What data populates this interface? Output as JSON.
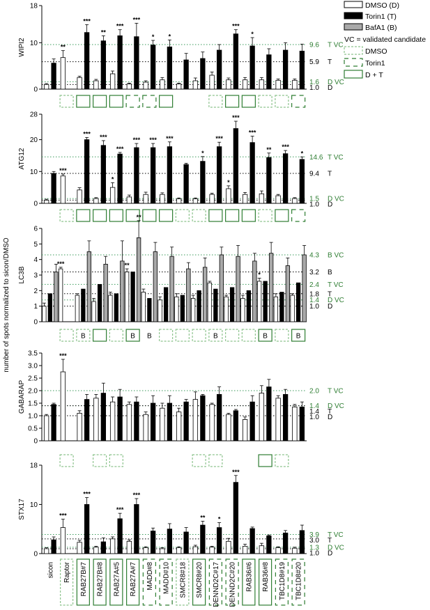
{
  "yaxis_common_label": "number of spots normalized to sicon/DMSO",
  "legend": {
    "dmso": "DMSO (D)",
    "torin": "Torin1 (T)",
    "baf": "BafA1 (B)",
    "vc_note": "VC = validated candidate",
    "box_dmso": "DMSO",
    "box_torin": "Torin1",
    "box_dt": "D + T"
  },
  "colors": {
    "green": "#2e7d32",
    "dotted_green": "#3a9a5a",
    "box_light": "#8ec48e",
    "dmso": "#ffffff",
    "torin": "#000000",
    "baf": "#a9a9a9"
  },
  "categories": [
    "sicon",
    "Raptor",
    "RAB27B#7",
    "RAB27B#8",
    "RAB27A#5",
    "RAB27A#7",
    "MADD#8",
    "MADD#10",
    "SMCR8#18",
    "SMCR8#20",
    "DENND2C#17",
    "DENND2C#20",
    "RAB36#6",
    "RAB36#8",
    "TBC1D8#19",
    "TBC1D8#20"
  ],
  "xlabel_boxes": [
    "none",
    "dmso",
    "dt",
    "dt",
    "dt",
    "dt",
    "torin",
    "torin",
    "dmso",
    "dt",
    "torin",
    "torin",
    "dt",
    "dt",
    "torin",
    "torin"
  ],
  "chart_data": [
    {
      "type": "bar",
      "ylabel": "WIPI2",
      "ylim": [
        0,
        18
      ],
      "yticks": [
        0,
        10,
        18
      ],
      "series": [
        {
          "name": "DMSO (D)",
          "key": "D",
          "values": [
            1.0,
            6.8,
            2.5,
            1.8,
            3.3,
            1.1,
            1.5,
            2.0,
            1.1,
            1.8,
            3.0,
            2.0,
            2.0,
            2.0,
            1.9,
            1.9
          ],
          "errors": [
            0.2,
            1.5,
            0.3,
            0.3,
            0.6,
            0.2,
            0.3,
            0.5,
            0.2,
            0.6,
            0.7,
            0.4,
            0.5,
            0.5,
            0.3,
            0.3
          ]
        },
        {
          "name": "Torin1 (T)",
          "key": "T",
          "values": [
            5.6,
            null,
            12.2,
            10.4,
            11.5,
            11.3,
            9.5,
            9.1,
            6.3,
            6.6,
            8.4,
            11.9,
            9.3,
            7.4,
            8.4,
            8.2
          ],
          "errors": [
            0.9,
            null,
            1.7,
            1.1,
            1.3,
            2.9,
            1.0,
            1.5,
            1.4,
            1.4,
            1.2,
            0.9,
            1.8,
            1.3,
            1.6,
            1.5
          ]
        }
      ],
      "stars": [
        {
          "i": 1,
          "s": "D",
          "t": "**"
        },
        {
          "i": 2,
          "s": "T",
          "t": "***"
        },
        {
          "i": 3,
          "s": "T",
          "t": "**"
        },
        {
          "i": 4,
          "s": "T",
          "t": "***"
        },
        {
          "i": 5,
          "s": "T",
          "t": "***"
        },
        {
          "i": 6,
          "s": "T",
          "t": "*"
        },
        {
          "i": 7,
          "s": "T",
          "t": "*"
        },
        {
          "i": 11,
          "s": "T",
          "t": "***"
        },
        {
          "i": 12,
          "s": "T",
          "t": "*"
        }
      ],
      "reflines": [
        {
          "value": 9.6,
          "label": "9.6",
          "suffix": "T VC",
          "color": "green"
        },
        {
          "value": 5.9,
          "label": "5.9",
          "suffix": "T",
          "color": "black"
        },
        {
          "value": 1.6,
          "label": "1.6",
          "suffix": "D VC",
          "color": "green"
        },
        {
          "value": 1.0,
          "label": "1.0",
          "suffix": "D",
          "color": "black"
        }
      ],
      "boxes": [
        "",
        "dmso",
        "dt",
        "dt",
        "dt",
        "torin",
        "torin",
        "dt",
        "",
        "",
        "dmso",
        "dt",
        "dt",
        "dmso",
        "dmso",
        "torin"
      ],
      "box_text": [
        "",
        "",
        "",
        "",
        "",
        "",
        "",
        "",
        "",
        "",
        "",
        "",
        "",
        "",
        "",
        ""
      ]
    },
    {
      "type": "bar",
      "ylabel": "ATG12",
      "ylim": [
        0,
        28
      ],
      "yticks": [
        0,
        10,
        20,
        28
      ],
      "series": [
        {
          "name": "DMSO (D)",
          "key": "D",
          "values": [
            1.0,
            8.6,
            4.2,
            1.5,
            5.0,
            2.0,
            2.8,
            2.8,
            1.4,
            1.4,
            2.8,
            4.6,
            2.8,
            3.0,
            2.4,
            1.5
          ],
          "errors": [
            0.3,
            0.6,
            0.7,
            0.3,
            1.5,
            0.6,
            0.7,
            0.5,
            0.3,
            0.3,
            0.4,
            0.9,
            0.6,
            0.9,
            0.4,
            0.3
          ]
        },
        {
          "name": "Torin1 (T)",
          "key": "T",
          "values": [
            9.4,
            null,
            20.0,
            18.2,
            15.5,
            17.5,
            17.5,
            17.8,
            12.2,
            13.2,
            17.8,
            23.5,
            19.1,
            14.4,
            15.6,
            13.8
          ],
          "errors": [
            0.6,
            null,
            0.7,
            1.5,
            0.5,
            1.3,
            1.3,
            1.5,
            0.4,
            1.5,
            1.4,
            2.3,
            2.0,
            1.4,
            1.0,
            0.8
          ]
        }
      ],
      "stars": [
        {
          "i": 1,
          "s": "D",
          "t": "***"
        },
        {
          "i": 2,
          "s": "T",
          "t": "***"
        },
        {
          "i": 3,
          "s": "T",
          "t": "***"
        },
        {
          "i": 4,
          "s": "T",
          "t": "***"
        },
        {
          "i": 4,
          "s": "D",
          "t": "*"
        },
        {
          "i": 5,
          "s": "T",
          "t": "***"
        },
        {
          "i": 6,
          "s": "T",
          "t": "***"
        },
        {
          "i": 7,
          "s": "T",
          "t": "***"
        },
        {
          "i": 9,
          "s": "T",
          "t": "*"
        },
        {
          "i": 10,
          "s": "T",
          "t": "***"
        },
        {
          "i": 11,
          "s": "T",
          "t": "***"
        },
        {
          "i": 11,
          "s": "D",
          "t": "*"
        },
        {
          "i": 12,
          "s": "T",
          "t": "***"
        },
        {
          "i": 13,
          "s": "T",
          "t": "**"
        },
        {
          "i": 14,
          "s": "T",
          "t": "***"
        },
        {
          "i": 15,
          "s": "T",
          "t": "*"
        }
      ],
      "reflines": [
        {
          "value": 14.6,
          "label": "14.6",
          "suffix": "T VC",
          "color": "green"
        },
        {
          "value": 9.4,
          "label": "9.4",
          "suffix": "T",
          "color": "black"
        },
        {
          "value": 1.5,
          "label": "1.5",
          "suffix": "D VC",
          "color": "green"
        },
        {
          "value": 1.0,
          "label": "1.0",
          "suffix": "D",
          "color": "black"
        }
      ],
      "boxes": [
        "",
        "dmso",
        "dt",
        "dt",
        "dt",
        "dt",
        "dt",
        "dt",
        "dmso",
        "dmso",
        "dt",
        "dt",
        "dt",
        "dmso",
        "dt",
        "torin"
      ],
      "box_text": [
        "",
        "",
        "",
        "",
        "",
        "",
        "",
        "",
        "",
        "",
        "",
        "",
        "",
        "",
        "",
        ""
      ]
    },
    {
      "type": "bar",
      "ylabel": "LC3B",
      "ylim": [
        0,
        6
      ],
      "yticks": [
        0,
        1,
        2,
        3,
        4,
        5,
        6
      ],
      "series": [
        {
          "name": "DMSO (D)",
          "key": "D",
          "values": [
            1.0,
            3.4,
            1.7,
            1.3,
            1.7,
            3.2,
            1.9,
            1.4,
            1.6,
            1.5,
            2.5,
            1.6,
            1.5,
            2.6,
            1.6,
            1.7
          ],
          "errors": [
            0.2,
            0.1,
            0.1,
            0.2,
            0.2,
            0.2,
            0.2,
            0.2,
            0.2,
            0.2,
            0.1,
            0.1,
            0.2,
            0.2,
            0.2,
            0.1
          ]
        },
        {
          "name": "Torin1 (T)",
          "key": "T",
          "values": [
            1.8,
            null,
            2.1,
            2.4,
            1.8,
            3.2,
            1.5,
            2.2,
            1.7,
            2.0,
            2.1,
            2.2,
            2.0,
            2.6,
            1.9,
            2.5
          ]
        },
        {
          "name": "BafA1 (B)",
          "key": "B",
          "values": [
            3.2,
            null,
            4.5,
            3.7,
            3.9,
            5.4,
            4.5,
            4.2,
            3.4,
            3.5,
            4.3,
            4.2,
            3.9,
            4.4,
            3.6,
            4.3
          ],
          "errors": [
            0.5,
            null,
            0.7,
            0.5,
            1.3,
            1.1,
            0.6,
            0.6,
            0.4,
            0.6,
            0.5,
            0.7,
            0.5,
            0.7,
            0.5,
            0.6
          ]
        }
      ],
      "stars": [
        {
          "i": 1,
          "s": "D",
          "t": "***"
        },
        {
          "i": 5,
          "s": "D",
          "t": "**"
        },
        {
          "i": 5,
          "s": "B",
          "t": "**"
        },
        {
          "i": 13,
          "s": "D",
          "t": "*"
        }
      ],
      "reflines": [
        {
          "value": 4.3,
          "label": "4.3",
          "suffix": "B VC",
          "color": "green"
        },
        {
          "value": 3.2,
          "label": "3.2",
          "suffix": "B",
          "color": "black"
        },
        {
          "value": 2.4,
          "label": "2.4",
          "suffix": "T VC",
          "color": "green"
        },
        {
          "value": 1.8,
          "label": "1.8",
          "suffix": "T",
          "color": "black"
        },
        {
          "value": 1.4,
          "label": "1.4",
          "suffix": "D VC",
          "color": "green"
        },
        {
          "value": 1.0,
          "label": "1.0",
          "suffix": "D",
          "color": "black"
        }
      ],
      "boxes": [
        "",
        "dmso",
        "dmso",
        "dt",
        "dmso",
        "dt",
        "none",
        "dmso",
        "dmso",
        "dmso",
        "dmso",
        "dmso",
        "dmso",
        "dt",
        "dmso",
        "dt"
      ],
      "box_text": [
        "",
        "",
        "B",
        "",
        "",
        "B",
        "B",
        "",
        "",
        "",
        "B",
        "",
        "",
        "B",
        "",
        "B"
      ]
    },
    {
      "type": "bar",
      "ylabel": "GABARAP",
      "ylim": [
        0,
        3.5
      ],
      "yticks": [
        0,
        0.5,
        1.0,
        1.5,
        2.0,
        2.5,
        3.0,
        3.5
      ],
      "ytick_labels": [
        "0",
        "0.5",
        "1.0",
        "1.5",
        "2.0",
        "2.5",
        "3.0",
        "3.5"
      ],
      "series": [
        {
          "name": "DMSO (D)",
          "key": "D",
          "values": [
            1.0,
            2.75,
            1.1,
            1.7,
            1.55,
            1.45,
            1.05,
            1.3,
            1.15,
            1.65,
            1.45,
            1.05,
            0.85,
            1.9,
            1.7,
            1.35
          ],
          "errors": [
            0.05,
            0.5,
            0.1,
            0.15,
            0.2,
            0.1,
            0.1,
            0.2,
            0.15,
            0.3,
            0.05,
            0.05,
            0.1,
            0.3,
            0.1,
            0.1
          ]
        },
        {
          "name": "Torin1 (T)",
          "key": "T",
          "values": [
            1.45,
            null,
            1.65,
            1.9,
            1.75,
            1.55,
            1.5,
            1.5,
            1.55,
            1.8,
            1.85,
            1.2,
            1.55,
            2.15,
            1.85,
            1.35
          ],
          "errors": [
            0.05,
            null,
            0.2,
            0.4,
            0.3,
            0.2,
            0.3,
            0.3,
            0.1,
            0.05,
            0.3,
            0.05,
            0.25,
            0.3,
            0.2,
            0.2
          ]
        }
      ],
      "stars": [
        {
          "i": 1,
          "s": "D",
          "t": "***"
        }
      ],
      "reflines": [
        {
          "value": 2.0,
          "label": "2.0",
          "suffix": "T VC",
          "color": "green"
        },
        {
          "value": 1.4,
          "label": "1.4",
          "suffix": "D VC",
          "color": "green"
        },
        {
          "value": 1.4,
          "label": "1.4",
          "suffix": "T",
          "color": "black"
        },
        {
          "value": 1.0,
          "label": "1.0",
          "suffix": "D",
          "color": "black"
        }
      ],
      "boxes": [
        "",
        "dmso",
        "",
        "dmso",
        "dmso",
        "",
        "",
        "",
        "",
        "dmso",
        "dmso",
        "",
        "",
        "dt",
        "dmso",
        ""
      ],
      "box_text": [
        "",
        "",
        "",
        "",
        "",
        "",
        "",
        "",
        "",
        "",
        "",
        "",
        "",
        "",
        "",
        ""
      ]
    },
    {
      "type": "bar",
      "ylabel": "STX17",
      "ylim": [
        0,
        18
      ],
      "yticks": [
        0,
        10,
        18
      ],
      "series": [
        {
          "name": "DMSO (D)",
          "key": "D",
          "values": [
            1.0,
            5.3,
            2.3,
            1.3,
            3.0,
            2.5,
            1.2,
            1.0,
            1.2,
            1.4,
            1.3,
            2.5,
            1.5,
            1.6,
            1.2,
            1.1
          ],
          "errors": [
            0.2,
            1.7,
            0.4,
            0.2,
            0.4,
            0.3,
            0.2,
            0.2,
            0.2,
            0.3,
            0.2,
            0.6,
            0.4,
            0.5,
            0.2,
            0.2
          ]
        },
        {
          "name": "Torin1 (T)",
          "key": "T",
          "values": [
            2.8,
            null,
            10.0,
            2.4,
            7.1,
            10.0,
            4.6,
            5.0,
            4.4,
            5.8,
            5.3,
            14.5,
            5.1,
            3.6,
            4.2,
            4.7
          ],
          "errors": [
            0.6,
            null,
            1.4,
            0.8,
            1.1,
            1.2,
            0.6,
            1.1,
            0.9,
            0.8,
            1.0,
            1.4,
            0.3,
            0.2,
            0.5,
            1.1
          ]
        }
      ],
      "stars": [
        {
          "i": 1,
          "s": "D",
          "t": "***"
        },
        {
          "i": 2,
          "s": "T",
          "t": "***"
        },
        {
          "i": 4,
          "s": "T",
          "t": "***"
        },
        {
          "i": 5,
          "s": "T",
          "t": "***"
        },
        {
          "i": 9,
          "s": "T",
          "t": "**"
        },
        {
          "i": 10,
          "s": "T",
          "t": "*"
        },
        {
          "i": 11,
          "s": "T",
          "t": "***"
        }
      ],
      "reflines": [
        {
          "value": 3.9,
          "label": "3.9",
          "suffix": "T VC",
          "color": "green"
        },
        {
          "value": 3.0,
          "label": "3.0",
          "suffix": "T",
          "color": "black"
        },
        {
          "value": 1.3,
          "label": "1.3",
          "suffix": "D VC",
          "color": "green"
        },
        {
          "value": 1.0,
          "label": "1.0",
          "suffix": "D",
          "color": "black"
        }
      ],
      "boxes": [],
      "box_text": []
    }
  ]
}
